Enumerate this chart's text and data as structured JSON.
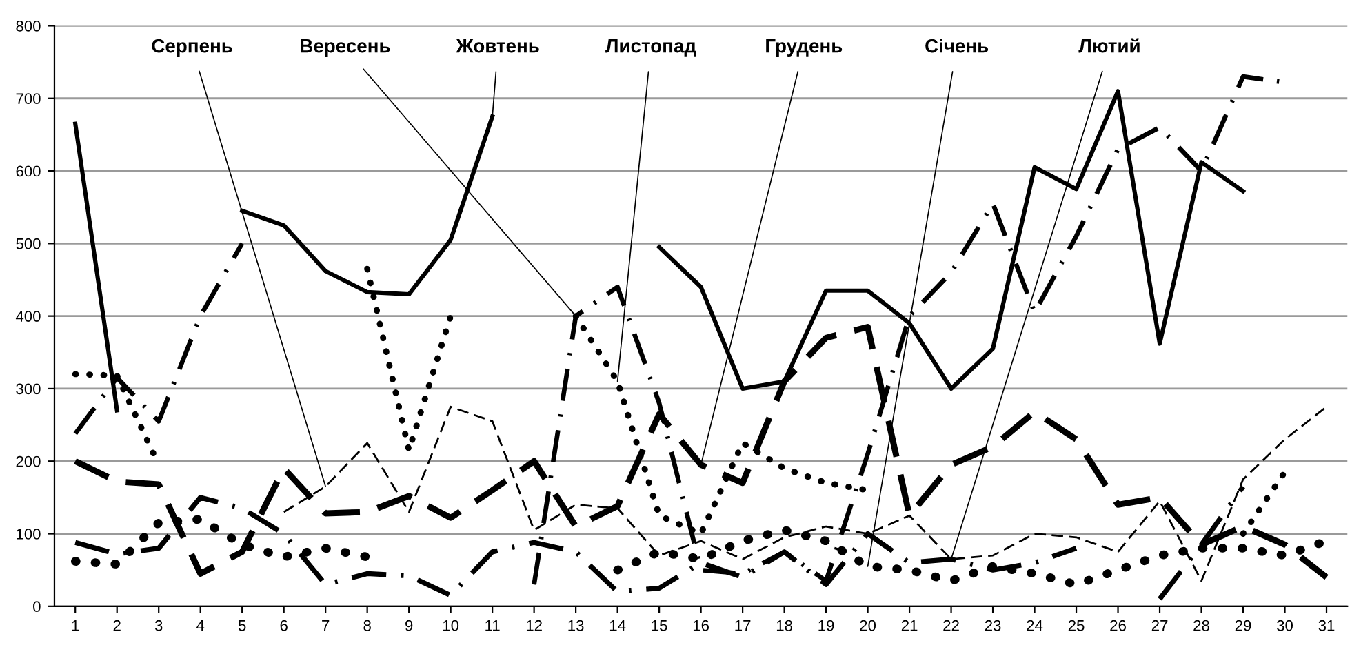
{
  "chart_data": {
    "type": "line",
    "categories": [
      "1",
      "2",
      "3",
      "4",
      "5",
      "6",
      "7",
      "8",
      "9",
      "10",
      "11",
      "12",
      "13",
      "14",
      "15",
      "16",
      "17",
      "18",
      "19",
      "20",
      "21",
      "22",
      "23",
      "24",
      "25",
      "26",
      "27",
      "28",
      "29",
      "30",
      "31"
    ],
    "ylim": [
      0,
      800
    ],
    "yticks": [
      0,
      100,
      200,
      300,
      400,
      500,
      600,
      700,
      800
    ],
    "grid": "y",
    "legend": false,
    "marker": "none",
    "series": [
      {
        "color": "#000000",
        "line_style": "solid",
        "values": [
          665,
          270,
          null,
          null,
          545,
          525,
          462,
          433,
          430,
          505,
          675,
          null,
          null,
          null,
          495,
          440,
          300,
          310,
          435,
          435,
          390,
          300,
          355,
          605,
          575,
          710,
          362,
          612,
          572,
          null,
          null
        ]
      },
      {
        "color": "#000000",
        "line_style": "dashed",
        "values": [
          null,
          null,
          null,
          null,
          null,
          130,
          165,
          225,
          130,
          275,
          255,
          105,
          140,
          135,
          70,
          90,
          65,
          95,
          110,
          100,
          125,
          65,
          70,
          100,
          95,
          75,
          145,
          35,
          175,
          230,
          275
        ]
      },
      {
        "color": "#000000",
        "line_style": "dashdot",
        "values": [
          238,
          315,
          255,
          400,
          500,
          null,
          null,
          null,
          null,
          null,
          null,
          30,
          400,
          440,
          280,
          50,
          45,
          75,
          35,
          210,
          400,
          460,
          555,
          405,
          510,
          630,
          660,
          600,
          730,
          722,
          null
        ]
      },
      {
        "color": "#000000",
        "line_style": "dotted",
        "values": [
          320,
          318,
          195,
          null,
          null,
          null,
          null,
          465,
          215,
          400,
          null,
          null,
          400,
          310,
          125,
          100,
          225,
          190,
          170,
          160,
          null,
          null,
          null,
          null,
          null,
          null,
          null,
          null,
          100,
          185,
          null
        ]
      },
      {
        "color": "#000000",
        "line_style": "dashed",
        "values": [
          200,
          172,
          168,
          45,
          75,
          190,
          128,
          130,
          152,
          122,
          160,
          200,
          110,
          138,
          265,
          195,
          170,
          310,
          370,
          385,
          125,
          195,
          220,
          268,
          230,
          140,
          150,
          85,
          110,
          85,
          40
        ]
      },
      {
        "color": "#000000",
        "line_style": "dotted",
        "values": [
          62,
          58,
          115,
          120,
          85,
          68,
          80,
          68,
          null,
          null,
          null,
          null,
          null,
          50,
          75,
          65,
          90,
          105,
          90,
          55,
          50,
          35,
          55,
          45,
          30,
          50,
          70,
          80,
          80,
          70,
          90
        ]
      },
      {
        "color": "#000000",
        "line_style": "dashdot",
        "values": [
          88,
          72,
          80,
          150,
          135,
          100,
          30,
          45,
          42,
          15,
          75,
          88,
          75,
          20,
          25,
          60,
          40,
          75,
          30,
          100,
          60,
          65,
          50,
          60,
          80,
          null,
          10,
          85,
          165,
          null,
          null
        ]
      }
    ],
    "annotations": [
      {
        "text": "Серпень",
        "x": "7",
        "y": 165
      },
      {
        "text": "Вересень",
        "x": "13",
        "y": 400
      },
      {
        "text": "Жовтень",
        "x": "11",
        "y": 675
      },
      {
        "text": "Листопад",
        "x": "14",
        "y": 310
      },
      {
        "text": "Грудень",
        "x": "16",
        "y": 195
      },
      {
        "text": "Січень",
        "x": "20",
        "y": 55
      },
      {
        "text": "Лютий",
        "x": "22",
        "y": 65
      }
    ]
  }
}
